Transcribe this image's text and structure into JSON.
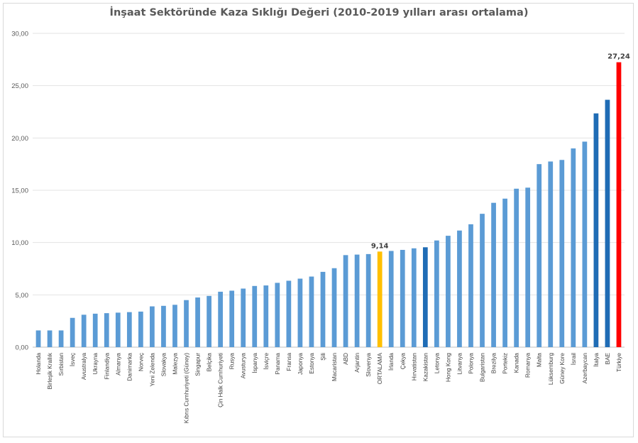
{
  "chart_data": {
    "type": "bar",
    "title": "İnşaat Sektöründe Kaza Sıklığı Değeri (2010-2019 yılları arası ortalama)",
    "xlabel": "",
    "ylabel": "",
    "ylim": [
      0,
      30
    ],
    "yticks": [
      "0,00",
      "5,00",
      "10,00",
      "15,00",
      "20,00",
      "25,00",
      "30,00"
    ],
    "grid": true,
    "legend": "none",
    "colors": {
      "default": "#5b9bd5",
      "highlight_blue": "#1f6cb5",
      "average": "#ffc000",
      "max": "#ff0000"
    },
    "categories": [
      "Holanda",
      "Birleşik Krallık",
      "Sırbistan",
      "İsveç",
      "Avustralya",
      "Ukrayna",
      "Finlandiya",
      "Almanya",
      "Danimarka",
      "Norveç",
      "Yeni Zelenda",
      "Slovakya",
      "Malezya",
      "Kıbrıs Cumhuriyeti (Güney)",
      "Singapur",
      "Belçika",
      "Çin Halk Cumhuriyeti",
      "Rusya",
      "Avusturya",
      "İspanya",
      "İsviçre",
      "Panama",
      "Fransa",
      "Japonya",
      "Estonya",
      "Şili",
      "Macaristan",
      "ABD",
      "Arjantin",
      "Slovenya",
      "ORTALAMA",
      "İrlanda",
      "Çekya",
      "Hırvatistan",
      "Kazakistan",
      "Letonya",
      "Hong Kong",
      "Litvanya",
      "Polonya",
      "Bulgaristan",
      "Brezilya",
      "Portekiz",
      "Kanada",
      "Romanya",
      "Malta",
      "Lüksemburg",
      "Güney Kore",
      "İsrail",
      "Azerbaycan",
      "İtalya",
      "BAE",
      "Türkiye"
    ],
    "values": [
      1.6,
      1.6,
      1.6,
      2.8,
      3.1,
      3.2,
      3.25,
      3.3,
      3.35,
      3.4,
      3.9,
      3.95,
      4.05,
      4.5,
      4.75,
      4.9,
      5.3,
      5.4,
      5.6,
      5.85,
      5.9,
      6.15,
      6.35,
      6.55,
      6.75,
      7.2,
      7.55,
      8.8,
      8.85,
      8.9,
      9.14,
      9.2,
      9.3,
      9.45,
      9.55,
      10.2,
      10.65,
      11.15,
      11.75,
      12.75,
      13.8,
      14.2,
      15.15,
      15.25,
      17.5,
      17.75,
      17.9,
      19.0,
      19.65,
      22.35,
      23.65,
      27.24
    ],
    "bar_colors": [
      "default",
      "default",
      "default",
      "default",
      "default",
      "default",
      "default",
      "default",
      "default",
      "default",
      "default",
      "default",
      "default",
      "default",
      "default",
      "default",
      "default",
      "default",
      "default",
      "default",
      "default",
      "default",
      "default",
      "default",
      "default",
      "default",
      "default",
      "default",
      "default",
      "default",
      "average",
      "default",
      "default",
      "default",
      "highlight_blue",
      "default",
      "default",
      "default",
      "default",
      "default",
      "default",
      "default",
      "default",
      "default",
      "default",
      "default",
      "default",
      "default",
      "default",
      "highlight_blue",
      "highlight_blue",
      "max"
    ],
    "data_labels": [
      {
        "index": 30,
        "text": "9,14"
      },
      {
        "index": 51,
        "text": "27,24"
      }
    ]
  }
}
